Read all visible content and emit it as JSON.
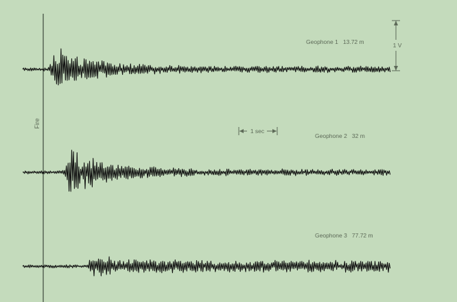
{
  "chart_data": {
    "type": "line",
    "title": "",
    "xlabel": "",
    "ylabel": "",
    "fire_label": "Fire",
    "time_scale_label": "1 sec",
    "time_scale_value_sec": 1,
    "voltage_scale_label": "1 V",
    "voltage_scale_value_V": 1,
    "background_color": "#c4dbbc",
    "trace_color": "#111111",
    "annotation_color": "#5d6a58",
    "series": [
      {
        "name": "Geophone 1",
        "label": "Geophone 1   13.72 m",
        "distance_m": 13.72,
        "arrival_sec": 0.1,
        "peak_amplitude_V": 1.0,
        "coda_amplitude_V": 0.12
      },
      {
        "name": "Geophone 2",
        "label": "Geophone 2   32 m",
        "distance_m": 32,
        "arrival_sec": 0.48,
        "peak_amplitude_V": 1.05,
        "coda_amplitude_V": 0.12
      },
      {
        "name": "Geophone 3",
        "label": "Geophone 3   77.72 m",
        "distance_m": 77.72,
        "arrival_sec": 1.1,
        "peak_amplitude_V": 0.45,
        "coda_amplitude_V": 0.22
      }
    ]
  }
}
